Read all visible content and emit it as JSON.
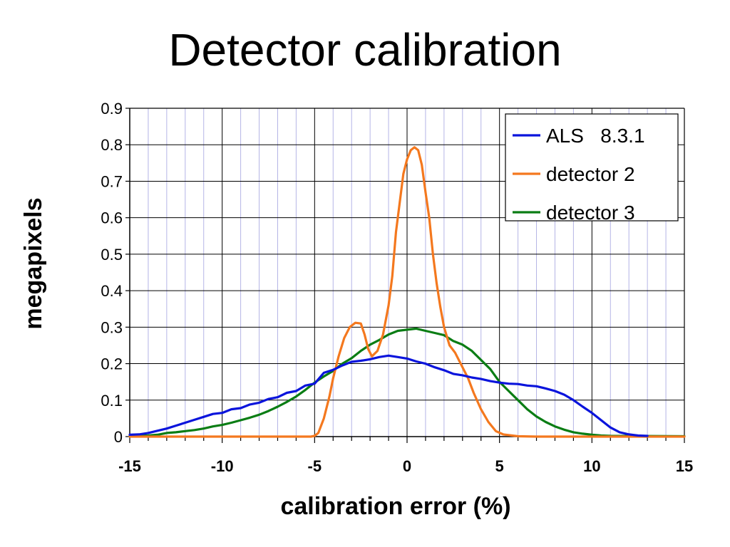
{
  "chart_data": {
    "type": "line",
    "title": "Detector calibration",
    "xlabel": "calibration error (%)",
    "ylabel": "megapixels",
    "xlim": [
      -15,
      15
    ],
    "ylim": [
      0,
      0.9
    ],
    "x_ticks": [
      "-15",
      "-10",
      "-5",
      "0",
      "5",
      "10",
      "15"
    ],
    "y_ticks": [
      "0",
      "0.1",
      "0.2",
      "0.3",
      "0.4",
      "0.5",
      "0.6",
      "0.7",
      "0.8",
      "0.9"
    ],
    "grid": true,
    "legend_position": "top-right",
    "series": [
      {
        "name": "ALS   8.3.1",
        "color": "#0a14dc",
        "points": [
          [
            -15,
            0.005
          ],
          [
            -14.5,
            0.006
          ],
          [
            -14,
            0.01
          ],
          [
            -13.5,
            0.016
          ],
          [
            -13,
            0.022
          ],
          [
            -12.5,
            0.03
          ],
          [
            -12,
            0.038
          ],
          [
            -11.5,
            0.046
          ],
          [
            -11,
            0.054
          ],
          [
            -10.5,
            0.062
          ],
          [
            -10,
            0.065
          ],
          [
            -9.5,
            0.075
          ],
          [
            -9,
            0.078
          ],
          [
            -8.5,
            0.088
          ],
          [
            -8,
            0.093
          ],
          [
            -7.5,
            0.103
          ],
          [
            -7,
            0.108
          ],
          [
            -6.5,
            0.12
          ],
          [
            -6,
            0.125
          ],
          [
            -5.5,
            0.14
          ],
          [
            -5,
            0.145
          ],
          [
            -4.5,
            0.175
          ],
          [
            -4,
            0.183
          ],
          [
            -3.5,
            0.195
          ],
          [
            -3,
            0.205
          ],
          [
            -2.5,
            0.208
          ],
          [
            -2,
            0.212
          ],
          [
            -1.5,
            0.218
          ],
          [
            -1,
            0.222
          ],
          [
            -0.5,
            0.218
          ],
          [
            0,
            0.214
          ],
          [
            0.5,
            0.206
          ],
          [
            1,
            0.2
          ],
          [
            1.5,
            0.19
          ],
          [
            2,
            0.182
          ],
          [
            2.5,
            0.172
          ],
          [
            3,
            0.168
          ],
          [
            3.5,
            0.162
          ],
          [
            4,
            0.158
          ],
          [
            4.5,
            0.152
          ],
          [
            5,
            0.148
          ],
          [
            5.5,
            0.145
          ],
          [
            6,
            0.144
          ],
          [
            6.5,
            0.14
          ],
          [
            7,
            0.138
          ],
          [
            7.5,
            0.132
          ],
          [
            8,
            0.125
          ],
          [
            8.5,
            0.115
          ],
          [
            9,
            0.1
          ],
          [
            9.5,
            0.082
          ],
          [
            10,
            0.065
          ],
          [
            10.5,
            0.045
          ],
          [
            11,
            0.025
          ],
          [
            11.5,
            0.012
          ],
          [
            12,
            0.006
          ],
          [
            12.5,
            0.003
          ],
          [
            13,
            0.002
          ]
        ]
      },
      {
        "name": "detector 2",
        "color": "#f4781e",
        "points": [
          [
            -15,
            0
          ],
          [
            -5.2,
            0
          ],
          [
            -5,
            0.002
          ],
          [
            -4.8,
            0.01
          ],
          [
            -4.5,
            0.05
          ],
          [
            -4.2,
            0.11
          ],
          [
            -4,
            0.16
          ],
          [
            -3.7,
            0.22
          ],
          [
            -3.4,
            0.27
          ],
          [
            -3.1,
            0.3
          ],
          [
            -2.8,
            0.312
          ],
          [
            -2.5,
            0.31
          ],
          [
            -2.3,
            0.28
          ],
          [
            -2.1,
            0.24
          ],
          [
            -1.9,
            0.22
          ],
          [
            -1.6,
            0.235
          ],
          [
            -1.3,
            0.28
          ],
          [
            -1,
            0.36
          ],
          [
            -0.8,
            0.44
          ],
          [
            -0.6,
            0.56
          ],
          [
            -0.4,
            0.64
          ],
          [
            -0.2,
            0.72
          ],
          [
            0,
            0.76
          ],
          [
            0.2,
            0.785
          ],
          [
            0.4,
            0.793
          ],
          [
            0.6,
            0.785
          ],
          [
            0.8,
            0.745
          ],
          [
            1,
            0.67
          ],
          [
            1.2,
            0.6
          ],
          [
            1.4,
            0.5
          ],
          [
            1.6,
            0.42
          ],
          [
            1.8,
            0.355
          ],
          [
            2,
            0.3
          ],
          [
            2.3,
            0.25
          ],
          [
            2.6,
            0.23
          ],
          [
            3,
            0.19
          ],
          [
            3.3,
            0.16
          ],
          [
            3.6,
            0.12
          ],
          [
            4,
            0.075
          ],
          [
            4.4,
            0.04
          ],
          [
            4.8,
            0.015
          ],
          [
            5.2,
            0.006
          ],
          [
            6,
            0.001
          ],
          [
            7,
            0
          ],
          [
            15,
            0
          ]
        ]
      },
      {
        "name": "detector 3",
        "color": "#0a7d14",
        "points": [
          [
            -15,
            0.002
          ],
          [
            -14,
            0.003
          ],
          [
            -13.5,
            0.005
          ],
          [
            -13,
            0.01
          ],
          [
            -12.5,
            0.012
          ],
          [
            -12,
            0.015
          ],
          [
            -11.5,
            0.018
          ],
          [
            -11,
            0.022
          ],
          [
            -10.5,
            0.028
          ],
          [
            -10,
            0.032
          ],
          [
            -9.5,
            0.038
          ],
          [
            -9,
            0.045
          ],
          [
            -8.5,
            0.052
          ],
          [
            -8,
            0.06
          ],
          [
            -7.5,
            0.07
          ],
          [
            -7,
            0.082
          ],
          [
            -6.5,
            0.095
          ],
          [
            -6,
            0.11
          ],
          [
            -5.5,
            0.128
          ],
          [
            -5,
            0.148
          ],
          [
            -4.5,
            0.165
          ],
          [
            -4,
            0.18
          ],
          [
            -3.5,
            0.2
          ],
          [
            -3,
            0.215
          ],
          [
            -2.5,
            0.235
          ],
          [
            -2,
            0.252
          ],
          [
            -1.5,
            0.265
          ],
          [
            -1,
            0.28
          ],
          [
            -0.5,
            0.29
          ],
          [
            0,
            0.293
          ],
          [
            0.5,
            0.296
          ],
          [
            1,
            0.29
          ],
          [
            1.5,
            0.284
          ],
          [
            2,
            0.278
          ],
          [
            2.5,
            0.262
          ],
          [
            3,
            0.252
          ],
          [
            3.5,
            0.235
          ],
          [
            4,
            0.21
          ],
          [
            4.5,
            0.185
          ],
          [
            5,
            0.15
          ],
          [
            5.5,
            0.125
          ],
          [
            6,
            0.1
          ],
          [
            6.5,
            0.075
          ],
          [
            7,
            0.055
          ],
          [
            7.5,
            0.04
          ],
          [
            8,
            0.028
          ],
          [
            8.5,
            0.019
          ],
          [
            9,
            0.012
          ],
          [
            9.5,
            0.008
          ],
          [
            10,
            0.005
          ],
          [
            10.5,
            0.003
          ],
          [
            11,
            0.002
          ],
          [
            15,
            0.001
          ]
        ]
      }
    ]
  }
}
